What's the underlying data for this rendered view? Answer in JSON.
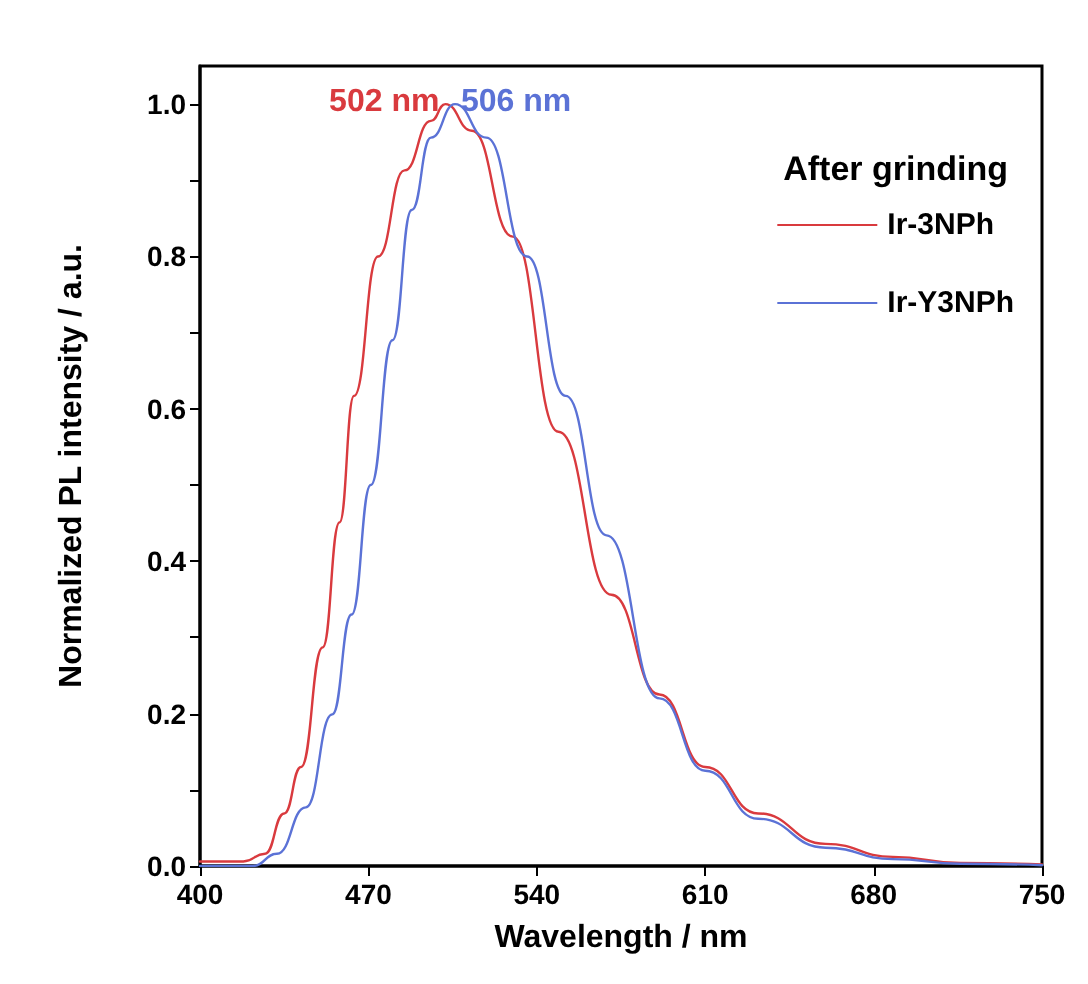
{
  "chart_data": {
    "type": "line",
    "xlabel": "Wavelength / nm",
    "ylabel": "Normalized PL intensity / a.u.",
    "legend_title": "After grinding",
    "xlim": [
      400,
      750
    ],
    "xticks": [
      400,
      470,
      540,
      610,
      680,
      750
    ],
    "ylim": [
      0,
      1.05
    ],
    "yticks": [
      {
        "value": 0,
        "label": "0.0"
      },
      {
        "value": 0.2,
        "label": "0.2"
      },
      {
        "value": 0.4,
        "label": "0.4"
      },
      {
        "value": 0.6,
        "label": "0.6"
      },
      {
        "value": 0.8,
        "label": "0.8"
      },
      {
        "value": 1.0,
        "label": "1.0"
      }
    ],
    "grid": false,
    "legend": "top right",
    "marker": "none",
    "line_style": "solid",
    "annotations": [
      {
        "text": "502 nm",
        "x": 502,
        "y": 1.0
      },
      {
        "text": "506 nm",
        "x": 506,
        "y": 1.0
      }
    ],
    "series": [
      {
        "name": "Ir-3NPh",
        "color": "#d93a3e",
        "x": [
          400,
          418,
          427,
          435,
          442,
          451,
          458,
          464,
          474,
          485,
          496,
          502,
          513,
          530,
          549,
          571,
          591,
          610,
          632,
          660,
          688,
          716,
          750
        ],
        "values": [
          0.006,
          0.006,
          0.016,
          0.069,
          0.13,
          0.287,
          0.451,
          0.617,
          0.8,
          0.913,
          0.978,
          1.0,
          0.965,
          0.826,
          0.57,
          0.356,
          0.225,
          0.13,
          0.069,
          0.029,
          0.012,
          0.004,
          0.002
        ]
      },
      {
        "name": "Ir-Y3NPh",
        "color": "#5b72d6",
        "x": [
          400,
          422,
          432,
          444,
          455,
          463,
          471,
          480,
          488,
          496,
          506,
          519,
          536,
          552,
          569,
          591,
          610,
          632,
          660,
          688,
          716,
          750
        ],
        "values": [
          0,
          0,
          0.016,
          0.077,
          0.199,
          0.33,
          0.5,
          0.69,
          0.861,
          0.956,
          1.0,
          0.956,
          0.8,
          0.617,
          0.434,
          0.22,
          0.125,
          0.062,
          0.024,
          0.009,
          0.003,
          0.001
        ]
      }
    ]
  }
}
